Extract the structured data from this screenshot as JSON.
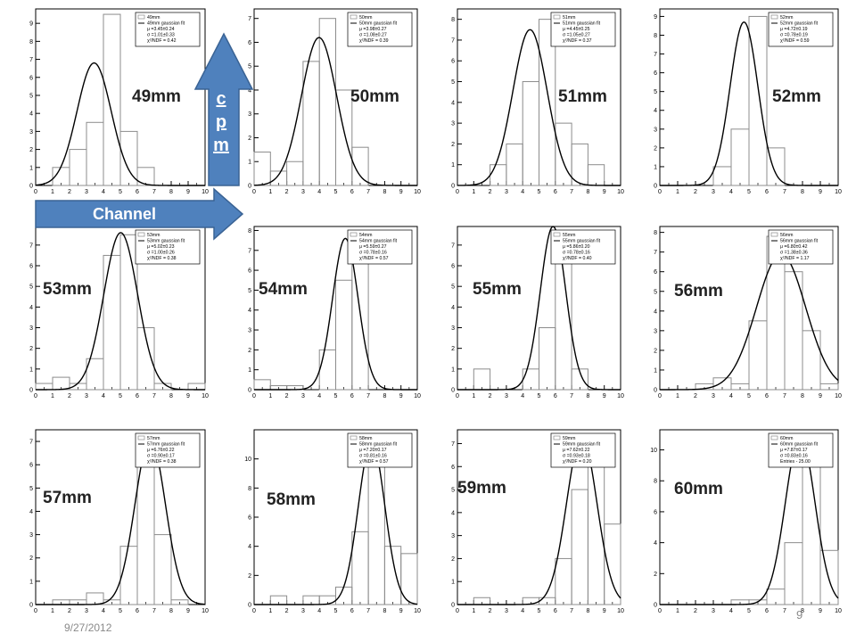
{
  "slide": {
    "date": "9/27/2012",
    "page_number": "9",
    "arrows": {
      "up_label": [
        "c",
        "p",
        "m"
      ],
      "right_label": "Channel"
    },
    "colors": {
      "arrow_fill": "#4f81bd",
      "arrow_stroke": "#3a6394",
      "hist": "#8c8c8c",
      "fit": "#000000"
    }
  },
  "chart_data": [
    {
      "type": "bar",
      "label": "49mm",
      "legend": [
        "49mm",
        "49mm gaussian fit",
        "μ =3.45±0.24",
        "σ =1.01±0.33",
        "χ²/NDF = 0.42"
      ],
      "hist_values": [
        0,
        1,
        2,
        3.5,
        9.5,
        3,
        1,
        0,
        0,
        0
      ],
      "ylim": [
        0,
        9.8
      ],
      "yticks": [
        0,
        1,
        2,
        3,
        4,
        5,
        6,
        7,
        8,
        9
      ],
      "fit": {
        "amp": 6.8,
        "mu": 3.45,
        "sigma": 1.01
      }
    },
    {
      "type": "bar",
      "label": "50mm",
      "legend": [
        "50mm",
        "50mm gaussian fit",
        "μ =3.98±0.27",
        "σ =1.08±0.27",
        "χ²/NDF = 0.39"
      ],
      "hist_values": [
        1.4,
        0.6,
        1.0,
        5.2,
        7.0,
        4.0,
        1.6,
        0,
        0,
        0
      ],
      "ylim": [
        0,
        7.4
      ],
      "yticks": [
        0,
        1,
        2,
        3,
        4,
        5,
        6,
        7
      ],
      "fit": {
        "amp": 6.2,
        "mu": 3.98,
        "sigma": 1.08
      }
    },
    {
      "type": "bar",
      "label": "51mm",
      "legend": [
        "51mm",
        "51mm gaussian fit",
        "μ =4.45±0.25",
        "σ =1.05±0.27",
        "χ²/NDF = 0.37"
      ],
      "hist_values": [
        0,
        0,
        1.0,
        2.0,
        5.0,
        8.0,
        3.0,
        2.0,
        1.0,
        0
      ],
      "ylim": [
        0,
        8.5
      ],
      "yticks": [
        0,
        1,
        2,
        3,
        4,
        5,
        6,
        7,
        8
      ],
      "fit": {
        "amp": 7.5,
        "mu": 4.45,
        "sigma": 1.05
      }
    },
    {
      "type": "bar",
      "label": "52mm",
      "legend": [
        "52mm",
        "52mm gaussian fit",
        "μ =4.72±0.19",
        "σ =0.78±0.19",
        "χ²/NDF = 0.59"
      ],
      "hist_values": [
        0,
        0,
        0,
        1.0,
        3.0,
        9.0,
        2.0,
        0,
        0,
        0
      ],
      "ylim": [
        0,
        9.4
      ],
      "yticks": [
        0,
        1,
        2,
        3,
        4,
        5,
        6,
        7,
        8,
        9
      ],
      "fit": {
        "amp": 8.7,
        "mu": 4.72,
        "sigma": 0.78
      }
    },
    {
      "type": "bar",
      "label": "53mm",
      "legend": [
        "53mm",
        "53mm gaussian fit",
        "μ =5.02±0.23",
        "σ =1.00±0.26",
        "χ²/NDF = 0.38"
      ],
      "hist_values": [
        0.3,
        0.6,
        0.3,
        1.5,
        6.5,
        7.5,
        3.0,
        0.3,
        0,
        0.3
      ],
      "ylim": [
        0,
        7.9
      ],
      "yticks": [
        0,
        1,
        2,
        3,
        4,
        5,
        6,
        7
      ],
      "fit": {
        "amp": 7.6,
        "mu": 5.02,
        "sigma": 1.0
      }
    },
    {
      "type": "bar",
      "label": "54mm",
      "legend": [
        "54mm",
        "54mm gaussian fit",
        "μ =5.59±0.27",
        "σ =0.78±0.16",
        "χ²/NDF = 0.57"
      ],
      "hist_values": [
        0.5,
        0.2,
        0.2,
        0,
        2.0,
        5.5,
        7.5,
        0,
        0,
        0
      ],
      "ylim": [
        0,
        8.2
      ],
      "yticks": [
        0,
        1,
        2,
        3,
        4,
        5,
        6,
        7,
        8
      ],
      "fit": {
        "amp": 7.6,
        "mu": 5.59,
        "sigma": 0.78
      }
    },
    {
      "type": "bar",
      "label": "55mm",
      "legend": [
        "55mm",
        "55mm gaussian fit",
        "μ =5.86±0.20",
        "σ =0.78±0.16",
        "χ²/NDF = 0.40"
      ],
      "hist_values": [
        0,
        1.0,
        0,
        0,
        1.0,
        3.0,
        7.5,
        1.0,
        0,
        0
      ],
      "ylim": [
        0,
        7.9
      ],
      "yticks": [
        0,
        1,
        2,
        3,
        4,
        5,
        6,
        7
      ],
      "fit": {
        "amp": 7.9,
        "mu": 5.86,
        "sigma": 0.78
      }
    },
    {
      "type": "bar",
      "label": "56mm",
      "legend": [
        "56mm",
        "56mm gaussian fit",
        "μ =6.80±0.42",
        "σ =1.38±0.36",
        "χ²/NDF = 1.17"
      ],
      "hist_values": [
        0,
        0,
        0.3,
        0.6,
        0.3,
        3.5,
        7.8,
        6.0,
        3.0,
        0.3
      ],
      "ylim": [
        0,
        8.3
      ],
      "yticks": [
        0,
        1,
        2,
        3,
        4,
        5,
        6,
        7,
        8
      ],
      "fit": {
        "amp": 6.9,
        "mu": 6.8,
        "sigma": 1.38
      }
    },
    {
      "type": "bar",
      "label": "57mm",
      "legend": [
        "57mm",
        "57mm gaussian fit",
        "μ =6.76±0.22",
        "σ =0.90±0.17",
        "χ²/NDF = 0.38"
      ],
      "hist_values": [
        0,
        0.2,
        0.2,
        0.5,
        0.2,
        2.5,
        7.0,
        3.0,
        0.2,
        0
      ],
      "ylim": [
        0,
        7.5
      ],
      "yticks": [
        0,
        1,
        2,
        3,
        4,
        5,
        6,
        7
      ],
      "fit": {
        "amp": 7.1,
        "mu": 6.76,
        "sigma": 0.9
      }
    },
    {
      "type": "bar",
      "label": "58mm",
      "legend": [
        "58mm",
        "58mm gaussian fit",
        "μ =7.20±0.17",
        "σ =0.81±0.16",
        "χ²/NDF = 0.57"
      ],
      "hist_values": [
        0,
        0.6,
        0,
        0.6,
        0.6,
        1.2,
        5.0,
        11.5,
        4.0,
        3.5
      ],
      "ylim": [
        0,
        12
      ],
      "yticks": [
        0,
        2,
        4,
        6,
        8,
        10
      ],
      "fit": {
        "amp": 11.2,
        "mu": 7.2,
        "sigma": 0.81
      }
    },
    {
      "type": "bar",
      "label": "59mm",
      "legend": [
        "59mm",
        "59mm gaussian fit",
        "μ =7.62±0.22",
        "σ =0.93±0.18",
        "χ²/NDF = 0.20"
      ],
      "hist_values": [
        0,
        0.3,
        0,
        0,
        0.3,
        0.3,
        2.0,
        5.0,
        7.0,
        3.5
      ],
      "ylim": [
        0,
        7.6
      ],
      "yticks": [
        0,
        1,
        2,
        3,
        4,
        5,
        6,
        7
      ],
      "fit": {
        "amp": 7.3,
        "mu": 7.62,
        "sigma": 0.93
      }
    },
    {
      "type": "bar",
      "label": "60mm",
      "legend": [
        "60mm",
        "60mm gaussian fit",
        "μ =7.87±0.17",
        "σ =0.83±0.16",
        "Entries - 25.00"
      ],
      "hist_values": [
        0,
        0,
        0,
        0,
        0.3,
        0.3,
        1.0,
        4.0,
        10.0,
        3.5
      ],
      "ylim": [
        0,
        11.3
      ],
      "yticks": [
        0,
        2,
        4,
        6,
        8,
        10
      ],
      "fit": {
        "amp": 10.9,
        "mu": 7.87,
        "sigma": 0.83
      }
    }
  ]
}
